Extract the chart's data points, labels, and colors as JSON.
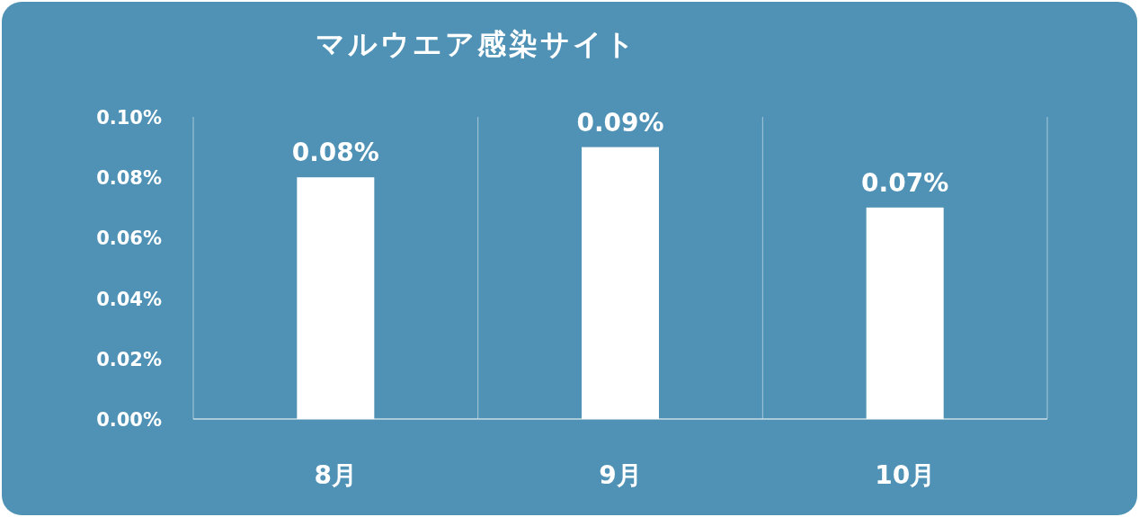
{
  "chart_data": {
    "type": "bar",
    "title": "マルウエア感染サイト",
    "categories": [
      "8月",
      "9月",
      "10月"
    ],
    "values": [
      0.08,
      0.09,
      0.07
    ],
    "color": "#ffffff",
    "ylim": [
      0,
      0.1
    ],
    "yticks": [
      {
        "value": 0,
        "label": "0.00%"
      },
      {
        "value": 0.02,
        "label": "0.02%"
      },
      {
        "value": 0.04,
        "label": "0.04%"
      },
      {
        "value": 0.06,
        "label": "0.06%"
      },
      {
        "value": 0.08,
        "label": "0.08%"
      },
      {
        "value": 0.1,
        "label": "0.10%"
      }
    ],
    "value_labels": [
      "0.08%",
      "0.09%",
      "0.07%"
    ],
    "grid": "x"
  }
}
